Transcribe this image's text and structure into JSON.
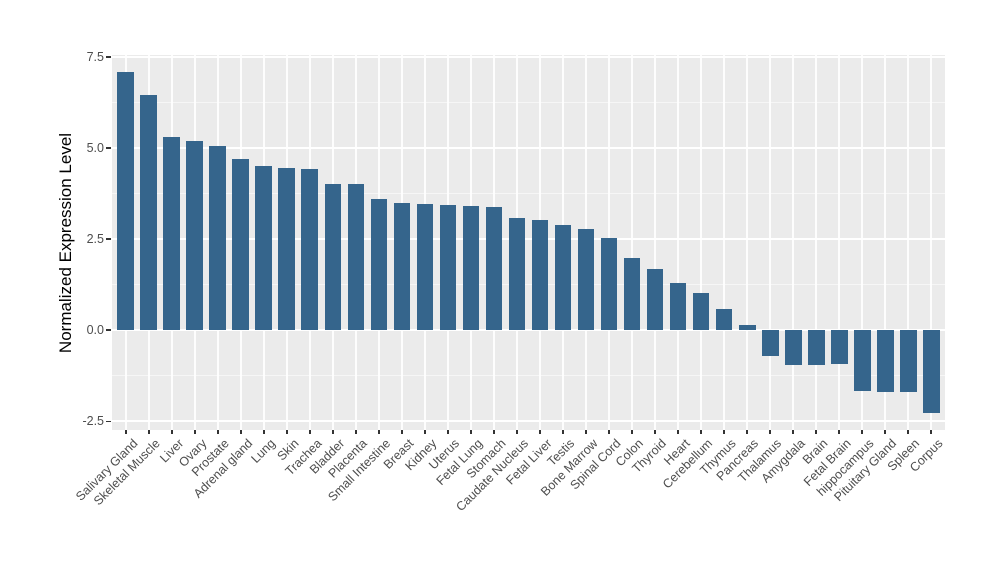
{
  "chart_data": {
    "type": "bar",
    "title": "",
    "xlabel": "",
    "ylabel": "Normalized Expression Level",
    "legend_position": "none",
    "grid": "on",
    "panel_background": "#EBEBEB",
    "grid_color": "#FFFFFF",
    "bar_color": "#35658C",
    "tick_color": "#333333",
    "tick_label_color": "#4D4D4D",
    "ylim": [
      -2.74,
      7.55
    ],
    "yticks": [
      7.5,
      5.0,
      2.5,
      0.0,
      -2.5
    ],
    "ytick_labels": [
      "7.5",
      "5.0",
      "2.5",
      "0.0",
      "-2.5"
    ],
    "yticks_minor": [
      6.25,
      3.75,
      1.25,
      -1.25
    ],
    "categories": [
      "Salivary Gland",
      "Skeletal Muscle",
      "Liver",
      "Ovary",
      "Prostate",
      "Adrenal gland",
      "Lung",
      "Skin",
      "Trachea",
      "Bladder",
      "Placenta",
      "Small Intestine",
      "Breast",
      "Kidney",
      "Uterus",
      "Fetal Lung",
      "Stomach",
      "Caudate Nucleus",
      "Fetal Liver",
      "Testis",
      "Bone Marrow",
      "Spinal Cord",
      "Colon",
      "Thyroid",
      "Heart",
      "Cerebellum",
      "Thymus",
      "Pancreas",
      "Thalamus",
      "Amygdala",
      "Brain",
      "Fetal Brain",
      "hippocampus",
      "Pituitary Gland",
      "Spleen",
      "Corpus"
    ],
    "values": [
      7.08,
      6.46,
      5.29,
      5.2,
      5.06,
      4.7,
      4.5,
      4.45,
      4.42,
      4.01,
      4.01,
      3.6,
      3.49,
      3.46,
      3.43,
      3.4,
      3.38,
      3.07,
      3.02,
      2.89,
      2.78,
      2.52,
      1.97,
      1.67,
      1.3,
      1.02,
      0.59,
      0.15,
      -0.7,
      -0.96,
      -0.96,
      -0.94,
      -1.68,
      -1.7,
      -1.7,
      -2.27
    ]
  }
}
